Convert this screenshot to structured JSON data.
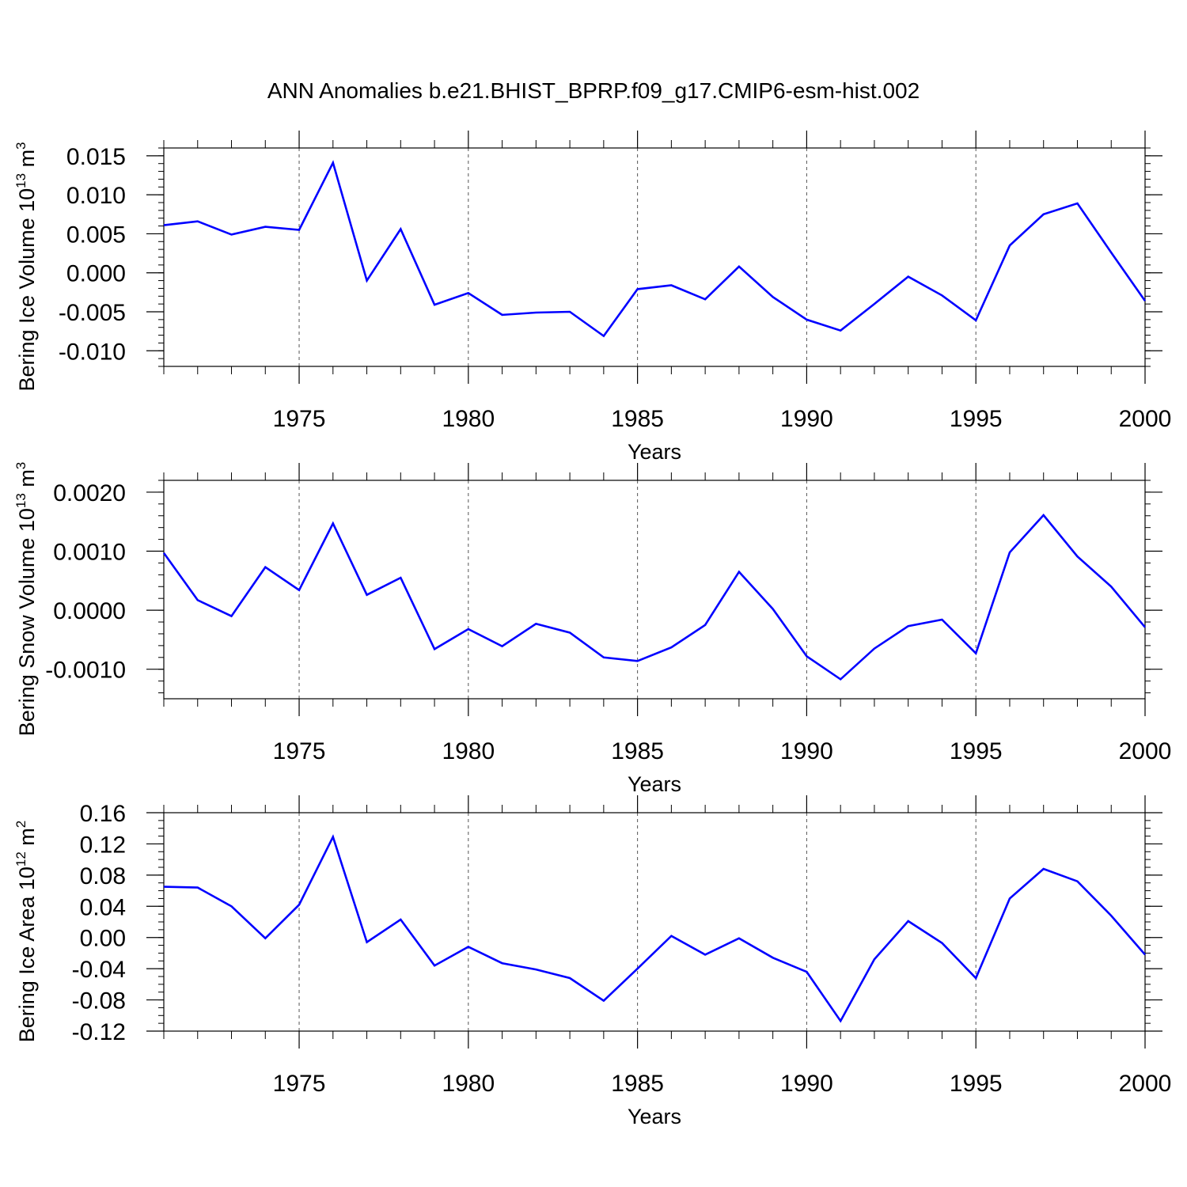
{
  "figure_title": "ANN Anomalies b.e21.BHIST_BPRP.f09_g17.CMIP6-esm-hist.002",
  "line_color": "#0000ff",
  "chart_data": [
    {
      "type": "line",
      "ylabel_main": "Bering Ice Volume 10",
      "ylabel_exp": "13",
      "ylabel_unit": "m",
      "ylabel_unit_exp": "3",
      "xlabel": "Years",
      "xlim": [
        1971,
        2000
      ],
      "ylim": [
        -0.012,
        0.016
      ],
      "y_major_ticks": [
        0.015,
        0.01,
        0.005,
        0.0,
        -0.005,
        -0.01
      ],
      "y_minor_step": 0.001,
      "y_tick_labels": [
        "0.015",
        "0.010",
        "0.005",
        "0.000",
        "-0.005",
        "-0.010"
      ],
      "x_major_ticks": [
        1975,
        1980,
        1985,
        1990,
        1995,
        2000
      ],
      "x_tick_labels": [
        "1975",
        "1980",
        "1985",
        "1990",
        "1995",
        "2000"
      ],
      "x": [
        1971,
        1972,
        1973,
        1974,
        1975,
        1976,
        1977,
        1978,
        1979,
        1980,
        1981,
        1982,
        1983,
        1984,
        1985,
        1986,
        1987,
        1988,
        1989,
        1990,
        1991,
        1992,
        1993,
        1994,
        1995,
        1996,
        1997,
        1998,
        1999,
        2000
      ],
      "values": [
        0.0061,
        0.0066,
        0.0049,
        0.0059,
        0.0055,
        0.0141,
        -0.001,
        0.0056,
        -0.0041,
        -0.0026,
        -0.0054,
        -0.0051,
        -0.005,
        -0.0081,
        -0.0021,
        -0.0016,
        -0.0034,
        0.0008,
        -0.0031,
        -0.006,
        -0.0074,
        -0.004,
        -0.0005,
        -0.0029,
        -0.0061,
        0.0035,
        0.0075,
        0.0089,
        0.0026,
        -0.0036
      ]
    },
    {
      "type": "line",
      "ylabel_main": "Bering Snow Volume 10",
      "ylabel_exp": "13",
      "ylabel_unit": "m",
      "ylabel_unit_exp": "3",
      "xlabel": "Years",
      "xlim": [
        1971,
        2000
      ],
      "ylim": [
        -0.0015,
        0.0022
      ],
      "y_major_ticks": [
        0.002,
        0.001,
        0.0,
        -0.001
      ],
      "y_minor_step": 0.0002,
      "y_tick_labels": [
        "0.0020",
        "0.0010",
        "0.0000",
        "-0.0010"
      ],
      "x_major_ticks": [
        1975,
        1980,
        1985,
        1990,
        1995,
        2000
      ],
      "x_tick_labels": [
        "1975",
        "1980",
        "1985",
        "1990",
        "1995",
        "2000"
      ],
      "x": [
        1971,
        1972,
        1973,
        1974,
        1975,
        1976,
        1977,
        1978,
        1979,
        1980,
        1981,
        1982,
        1983,
        1984,
        1985,
        1986,
        1987,
        1988,
        1989,
        1990,
        1991,
        1992,
        1993,
        1994,
        1995,
        1996,
        1997,
        1998,
        1999,
        2000
      ],
      "values": [
        0.00097,
        0.00017,
        -0.0001,
        0.00073,
        0.00034,
        0.00147,
        0.00026,
        0.00055,
        -0.00066,
        -0.00032,
        -0.00061,
        -0.00023,
        -0.00038,
        -0.0008,
        -0.00086,
        -0.00063,
        -0.00025,
        0.00065,
        2e-05,
        -0.00078,
        -0.00117,
        -0.00065,
        -0.00027,
        -0.00016,
        -0.00073,
        0.00098,
        0.00161,
        0.00091,
        0.0004,
        -0.00029
      ]
    },
    {
      "type": "line",
      "ylabel_main": "Bering Ice Area 10",
      "ylabel_exp": "12",
      "ylabel_unit": "m",
      "ylabel_unit_exp": "2",
      "xlabel": "Years",
      "xlim": [
        1971,
        2000
      ],
      "ylim": [
        -0.12,
        0.16
      ],
      "y_major_ticks": [
        0.16,
        0.12,
        0.08,
        0.04,
        0.0,
        -0.04,
        -0.08,
        -0.12
      ],
      "y_minor_step": 0.01,
      "y_tick_labels": [
        "0.16",
        "0.12",
        "0.08",
        "0.04",
        "0.00",
        "-0.04",
        "-0.08",
        "-0.12"
      ],
      "x_major_ticks": [
        1975,
        1980,
        1985,
        1990,
        1995,
        2000
      ],
      "x_tick_labels": [
        "1975",
        "1980",
        "1985",
        "1990",
        "1995",
        "2000"
      ],
      "x": [
        1971,
        1972,
        1973,
        1974,
        1975,
        1976,
        1977,
        1978,
        1979,
        1980,
        1981,
        1982,
        1983,
        1984,
        1985,
        1986,
        1987,
        1988,
        1989,
        1990,
        1991,
        1992,
        1993,
        1994,
        1995,
        1996,
        1997,
        1998,
        1999,
        2000
      ],
      "values": [
        0.065,
        0.064,
        0.04,
        -0.001,
        0.042,
        0.129,
        -0.006,
        0.023,
        -0.036,
        -0.012,
        -0.033,
        -0.041,
        -0.052,
        -0.081,
        -0.04,
        0.002,
        -0.022,
        -0.001,
        -0.026,
        -0.044,
        -0.107,
        -0.028,
        0.021,
        -0.007,
        -0.052,
        0.05,
        0.088,
        0.072,
        0.028,
        -0.022
      ]
    }
  ]
}
